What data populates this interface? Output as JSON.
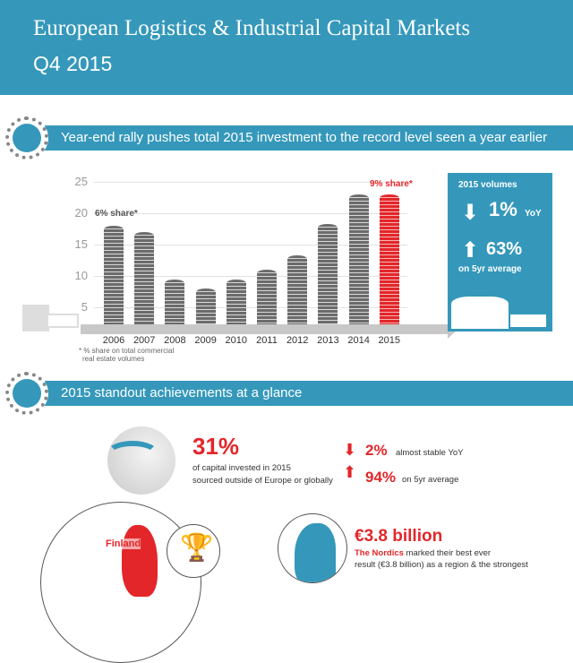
{
  "header": {
    "title": "European Logistics & Industrial Capital Markets",
    "subtitle": "Q4 2015"
  },
  "section1": {
    "title": "Year-end rally pushes total 2015 investment to the record level seen a year earlier"
  },
  "section2": {
    "title": "2015 standout achievements at a glance"
  },
  "chart_data": {
    "type": "bar",
    "title": "Year-end rally pushes total 2015 investment to the record level seen a year earlier",
    "categories": [
      "2006",
      "2007",
      "2008",
      "2009",
      "2010",
      "2011",
      "2012",
      "2013",
      "2014",
      "2015"
    ],
    "values": [
      18,
      17,
      9.5,
      8,
      9.5,
      11,
      13.3,
      18.3,
      23,
      23
    ],
    "highlight": "2015",
    "yticks": [
      "5",
      "10",
      "15",
      "20",
      "25"
    ],
    "ylim": [
      0,
      25
    ],
    "annotations": {
      "a2006": "6% share*",
      "a2015": "9% share*"
    },
    "footnote": [
      "* % share on total commercial",
      "real estate volumes"
    ],
    "colors": {
      "bar": "#6b6b6b",
      "highlight": "#e3262a"
    }
  },
  "volumes_box": {
    "title": "2015 volumes",
    "yoy_value": "1%",
    "yoy_label": "YoY",
    "avg_value": "63%",
    "avg_label": "on 5yr average"
  },
  "achievements": {
    "global_value": "31%",
    "global_text1": "of capital invested in 2015",
    "global_text2": "sourced outside of Europe or globally",
    "down_value": "2%",
    "down_label": "almost stable YoY",
    "up_value": "94%",
    "up_label": "on 5yr average",
    "finland_label": "Finland",
    "nordics_value": "€3.8 billion",
    "nordics_name": "The Nordics",
    "nordics_text1": " marked their best ever",
    "nordics_text2": "result (€3.8 billion) as a region & the strongest"
  }
}
